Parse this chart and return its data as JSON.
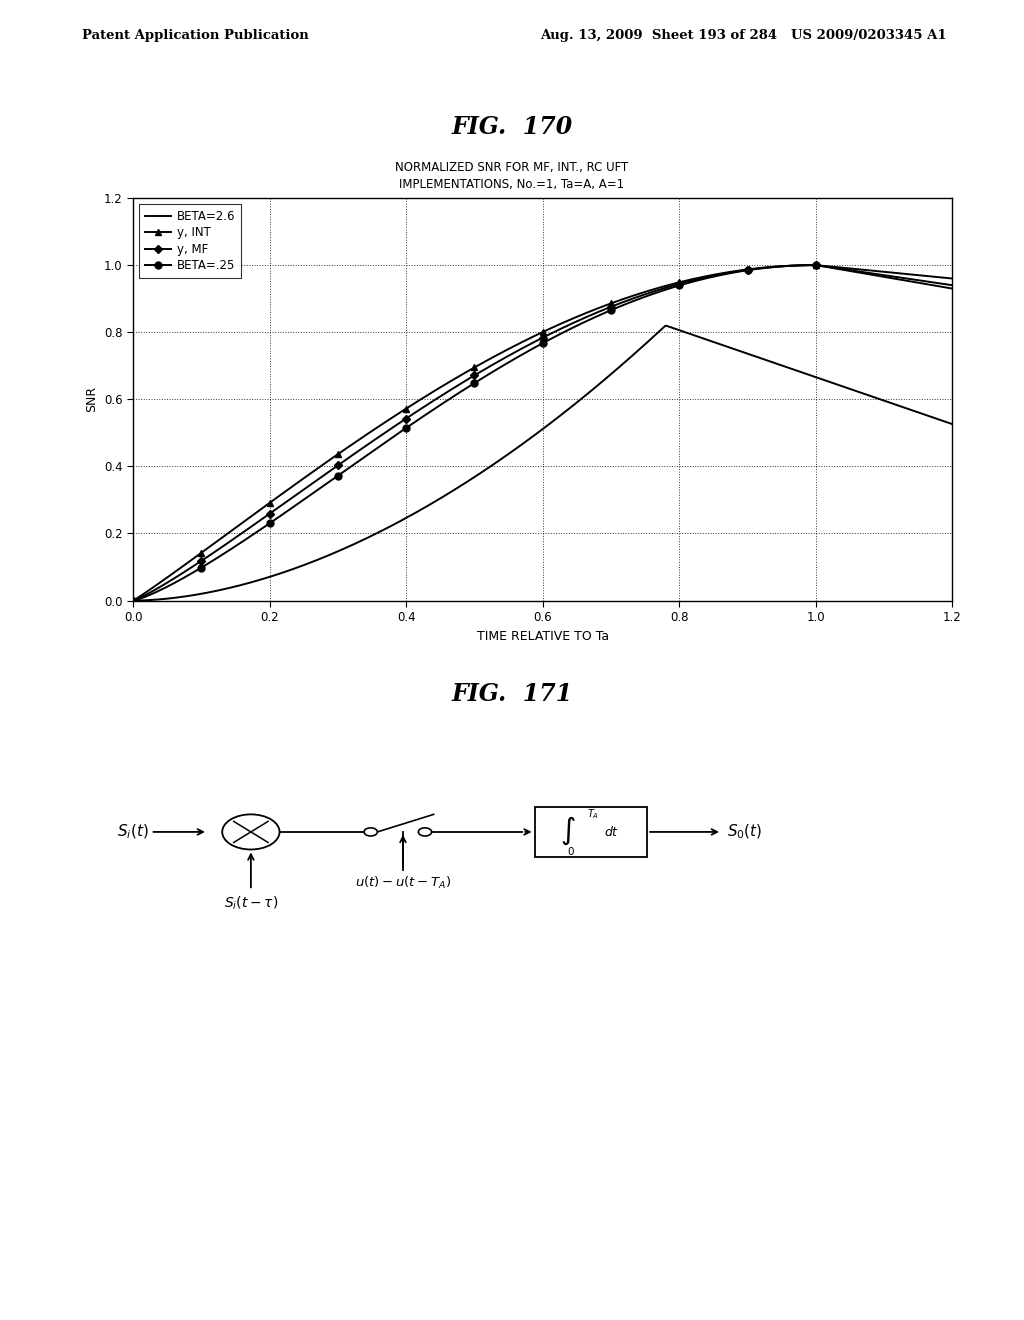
{
  "fig170_title": "FIG.  170",
  "fig170_subtitle_line1": "NORMALIZED SNR FOR MF, INT., RC UFT",
  "fig170_subtitle_line2": "IMPLEMENTATIONS, No.=1, Ta=A, A=1",
  "xlabel": "TIME RELATIVE TO Ta",
  "ylabel": "SNR",
  "xlim": [
    0.0,
    1.2
  ],
  "ylim": [
    0.0,
    1.2
  ],
  "xticks": [
    0.0,
    0.2,
    0.4,
    0.6,
    0.8,
    1.0,
    1.2
  ],
  "yticks": [
    0.0,
    0.2,
    0.4,
    0.6,
    0.8,
    1.0,
    1.2
  ],
  "legend_labels": [
    "BETA=2.6",
    "y, INT",
    "y, MF",
    "BETA=.25"
  ],
  "fig171_title": "FIG.  171",
  "header_left": "Patent Application Publication",
  "header_right": "Aug. 13, 2009  Sheet 193 of 284   US 2009/0203345 A1"
}
